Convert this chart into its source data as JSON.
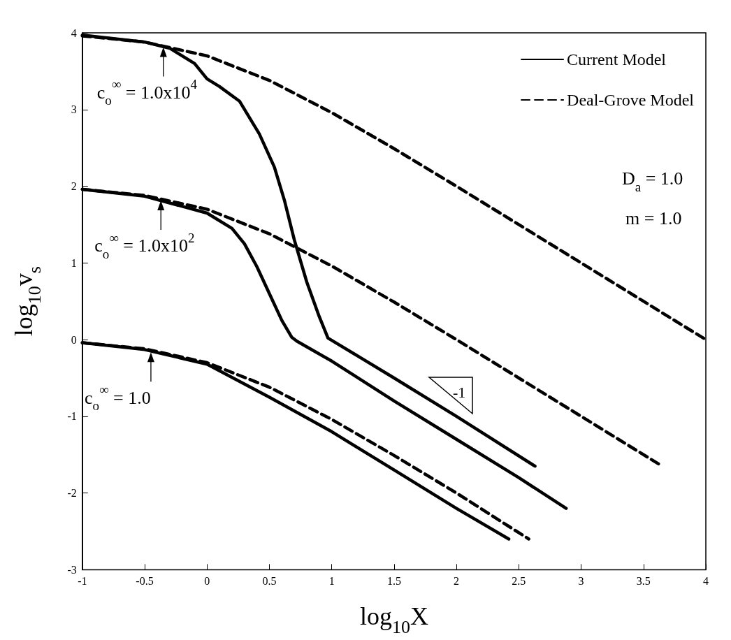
{
  "chart_data": {
    "type": "line",
    "xlabel": "log$_{10}$X",
    "ylabel": "log$_{10}$v$_{s}$",
    "xlim": [
      -1,
      4
    ],
    "ylim": [
      -3,
      4
    ],
    "xticks": [
      -1,
      -0.5,
      0,
      0.5,
      1,
      1.5,
      2,
      2.5,
      3,
      3.5,
      4
    ],
    "yticks": [
      -3,
      -2,
      -1,
      0,
      1,
      2,
      3,
      4
    ],
    "grid": false,
    "legend": "top right",
    "series": [
      {
        "name": "Current Model",
        "color": "#000000",
        "line_style": "solid",
        "x": [
          -1,
          -0.5,
          -0.3,
          -0.1,
          0,
          0.1,
          0.26,
          0.42,
          0.54,
          0.62,
          0.7,
          0.8,
          0.9,
          0.97,
          1.5,
          2,
          2.63
        ],
        "values": [
          3.97,
          3.88,
          3.8,
          3.6,
          3.4,
          3.3,
          3.11,
          2.68,
          2.25,
          1.82,
          1.3,
          0.75,
          0.3,
          0.02,
          -0.5,
          -1.0,
          -1.65
        ]
      },
      {
        "color": "#000000",
        "line_style": "solid",
        "x": [
          -1,
          -0.5,
          0,
          0.2,
          0.3,
          0.4,
          0.5,
          0.6,
          0.68,
          0.72,
          1,
          1.5,
          2,
          2.5,
          2.88
        ],
        "values": [
          1.96,
          1.87,
          1.65,
          1.45,
          1.25,
          0.95,
          0.6,
          0.25,
          0.03,
          -0.02,
          -0.28,
          -0.8,
          -1.3,
          -1.8,
          -2.2
        ]
      },
      {
        "color": "#000000",
        "line_style": "solid",
        "x": [
          -1,
          -0.5,
          0,
          0.5,
          1,
          1.5,
          2,
          2.42
        ],
        "values": [
          -0.04,
          -0.13,
          -0.32,
          -0.75,
          -1.2,
          -1.7,
          -2.2,
          -2.6
        ]
      },
      {
        "name": "Deal-Grove Model",
        "color": "#000000",
        "line_style": "dashed",
        "x": [
          -1,
          -0.5,
          0,
          0.5,
          1,
          1.5,
          2,
          2.5,
          3,
          3.5,
          4
        ],
        "values": [
          3.96,
          3.88,
          3.7,
          3.38,
          2.96,
          2.49,
          2.0,
          1.5,
          1.0,
          0.5,
          0.0
        ]
      },
      {
        "color": "#000000",
        "line_style": "dashed",
        "x": [
          -1,
          -0.5,
          0,
          0.5,
          1,
          1.5,
          2,
          2.5,
          3,
          3.65
        ],
        "values": [
          1.96,
          1.88,
          1.7,
          1.38,
          0.96,
          0.49,
          0.0,
          -0.5,
          -1.0,
          -1.65
        ]
      },
      {
        "color": "#000000",
        "line_style": "dashed",
        "x": [
          -1,
          -0.5,
          0,
          0.5,
          1,
          1.5,
          2,
          2.58
        ],
        "values": [
          -0.04,
          -0.12,
          -0.3,
          -0.62,
          -1.04,
          -1.51,
          -2.0,
          -2.6
        ]
      }
    ],
    "annotations": [
      {
        "text": "c$_{o}$$^{∞}$ = 1.0x10$^{4}$",
        "x": -0.35,
        "y": 3.85
      },
      {
        "text": "c$_{o}$$^{∞}$ = 1.0x10$^{2}$",
        "x": -0.37,
        "y": 1.85
      },
      {
        "text": "c$_{o}$$^{∞}$ = 1.0",
        "x": -0.45,
        "y": -0.13
      },
      "D$_{a}$ = 1.0",
      "m = 1.0",
      "-1"
    ]
  }
}
